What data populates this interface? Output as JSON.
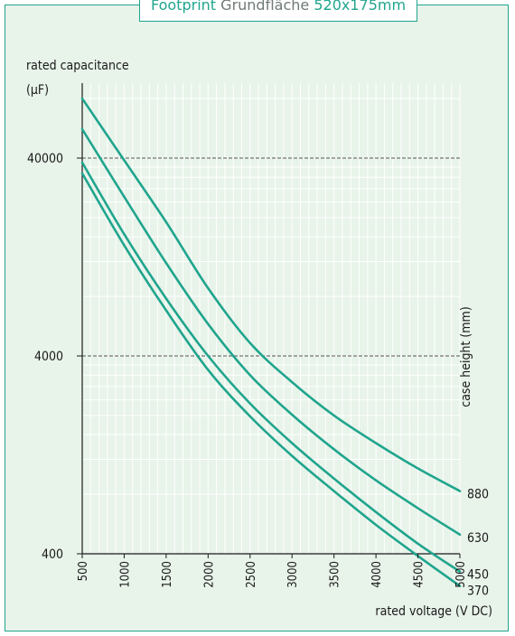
{
  "title": {
    "prefix": "Footprint",
    "middle": "Grundfläche",
    "suffix": "520x175mm"
  },
  "colors": {
    "accent": "#20a58d",
    "background": "#e8f3ea",
    "frame_border": "#20a58d",
    "grid": "#ffffff",
    "reference_lines": "#555555",
    "text": "#1a1a1a"
  },
  "chart_data": {
    "type": "line",
    "title": "Footprint Grundfläche 520x175mm",
    "xlabel": "rated voltage (V DC)",
    "ylabel_line1": "rated capacitance",
    "ylabel_line2": "(µF)",
    "legend_title": "case height (mm)",
    "x_scale": "linear",
    "y_scale": "log",
    "xlim": [
      500,
      5000
    ],
    "ylim": [
      400,
      90000
    ],
    "x_ticks": [
      "500",
      "1000",
      "1500",
      "2000",
      "2500",
      "3000",
      "3500",
      "4000",
      "4500",
      "5000"
    ],
    "y_ticks": [
      "400",
      "4000",
      "40000"
    ],
    "reference_lines_y": [
      4000,
      40000
    ],
    "grid": true,
    "series": [
      {
        "name": "880",
        "x": [
          500,
          1000,
          1500,
          2000,
          2500,
          3000,
          3500,
          4000,
          4500,
          5000
        ],
        "y": [
          80000,
          39000,
          19000,
          8800,
          4650,
          2950,
          2000,
          1450,
          1080,
          830
        ]
      },
      {
        "name": "630",
        "x": [
          500,
          1000,
          1500,
          2000,
          2500,
          3000,
          3500,
          4000,
          4500,
          5000
        ],
        "y": [
          56000,
          25500,
          11800,
          5800,
          3200,
          2020,
          1350,
          940,
          680,
          500
        ]
      },
      {
        "name": "450",
        "x": [
          500,
          1000,
          1500,
          2000,
          2500,
          3000,
          3500,
          4000,
          4500,
          5000
        ],
        "y": [
          38000,
          16500,
          7800,
          4000,
          2300,
          1450,
          960,
          650,
          450,
          325
        ]
      },
      {
        "name": "370",
        "x": [
          500,
          1000,
          1500,
          2000,
          2500,
          3000,
          3500,
          4000,
          4500,
          5000
        ],
        "y": [
          33500,
          14500,
          6800,
          3400,
          1980,
          1250,
          830,
          560,
          390,
          275
        ]
      }
    ]
  }
}
